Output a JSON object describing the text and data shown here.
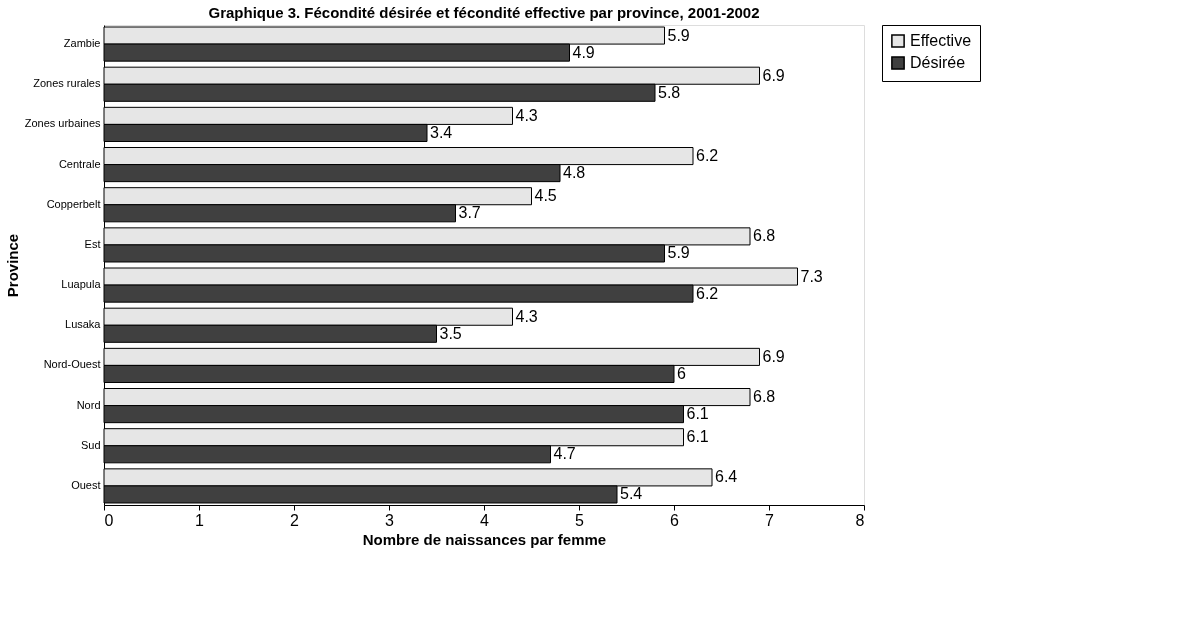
{
  "chart_data": {
    "type": "bar",
    "orientation": "horizontal",
    "title": "Graphique 3.  Fécondité désirée et fécondité effective par province, 2001-2002",
    "xlabel": "Nombre de naissances par femme",
    "ylabel": "Province",
    "categories": [
      "Zambie",
      "Zones rurales",
      "Zones urbaines",
      "Centrale",
      "Copperbelt",
      "Est",
      "Luapula",
      "Lusaka",
      "Nord-Ouest",
      "Nord",
      "Sud",
      "Ouest"
    ],
    "series": [
      {
        "name": "Effective",
        "color": "#e6e6e6",
        "values": [
          5.9,
          6.9,
          4.3,
          6.2,
          4.5,
          6.8,
          7.3,
          4.3,
          6.9,
          6.8,
          6.1,
          6.4
        ]
      },
      {
        "name": "Désirée",
        "color": "#404040",
        "values": [
          4.9,
          5.8,
          3.4,
          4.8,
          3.7,
          5.9,
          6.2,
          3.5,
          6,
          6.1,
          4.7,
          5.4
        ]
      }
    ],
    "xlim": [
      0,
      8
    ],
    "xticks": [
      0,
      1,
      2,
      3,
      4,
      5,
      6,
      7,
      8
    ],
    "data_labels": true,
    "grid": false,
    "legend": "right"
  }
}
